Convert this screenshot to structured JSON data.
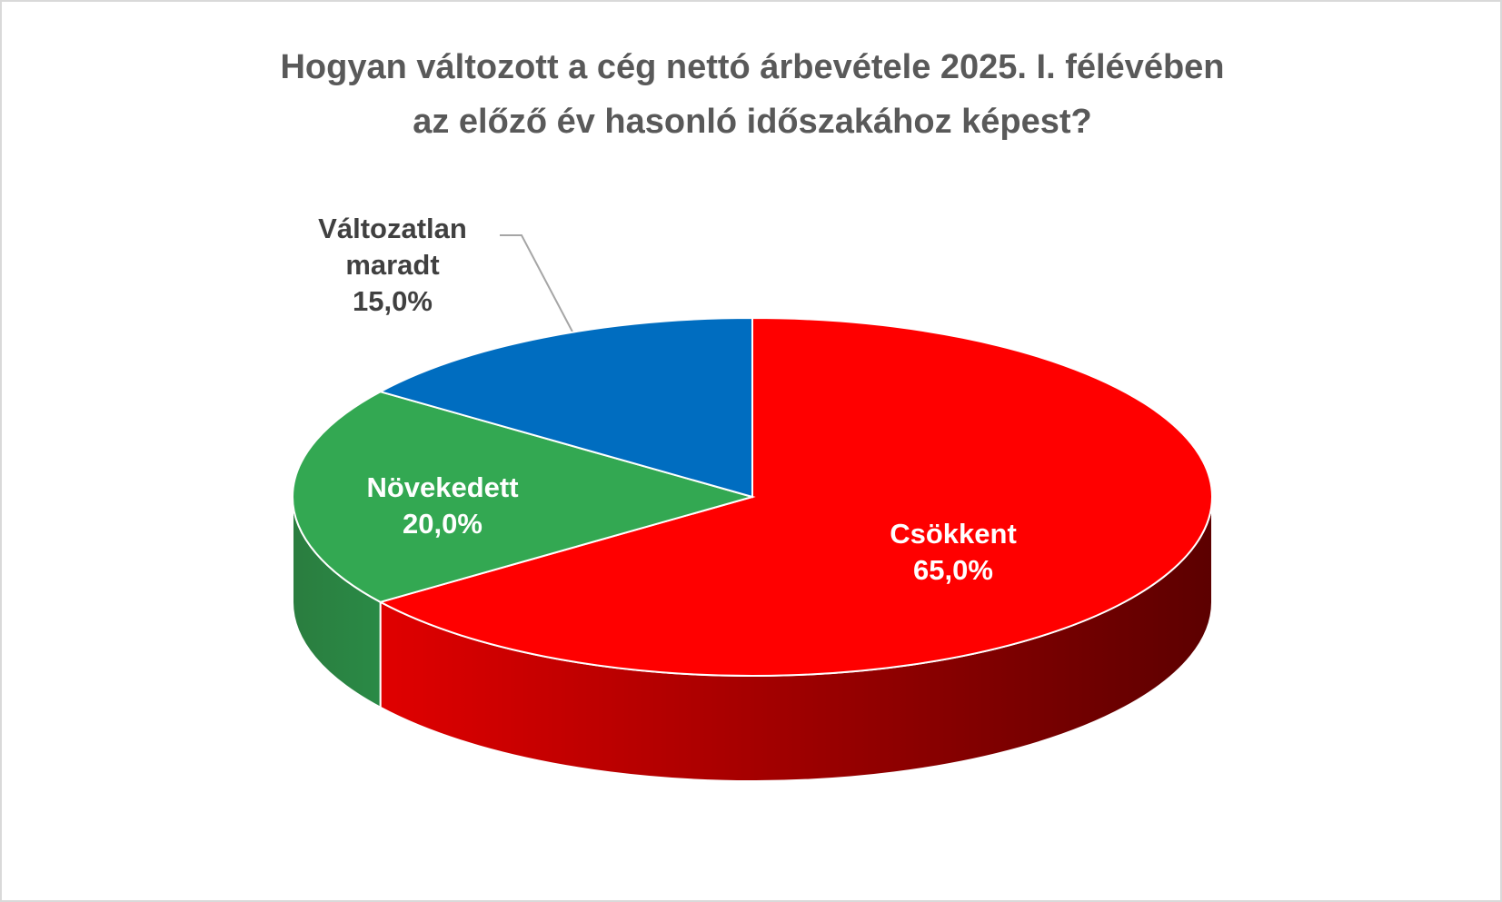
{
  "chart_data": {
    "type": "pie3d",
    "title": "Hogyan változott a cég nettó árbevétele 2025. I. félévében az előző év hasonló időszakához képest?",
    "categories": [
      "Csökkent",
      "Növekedett",
      "Változatlan maradt"
    ],
    "values": [
      65,
      20,
      15
    ],
    "value_labels": [
      "65,0%",
      "20,0%",
      "15,0%"
    ],
    "colors": [
      "#ff0000",
      "#33a852",
      "#006dc0"
    ],
    "label_colors": [
      "#ffffff",
      "#ffffff",
      "#404040"
    ]
  }
}
